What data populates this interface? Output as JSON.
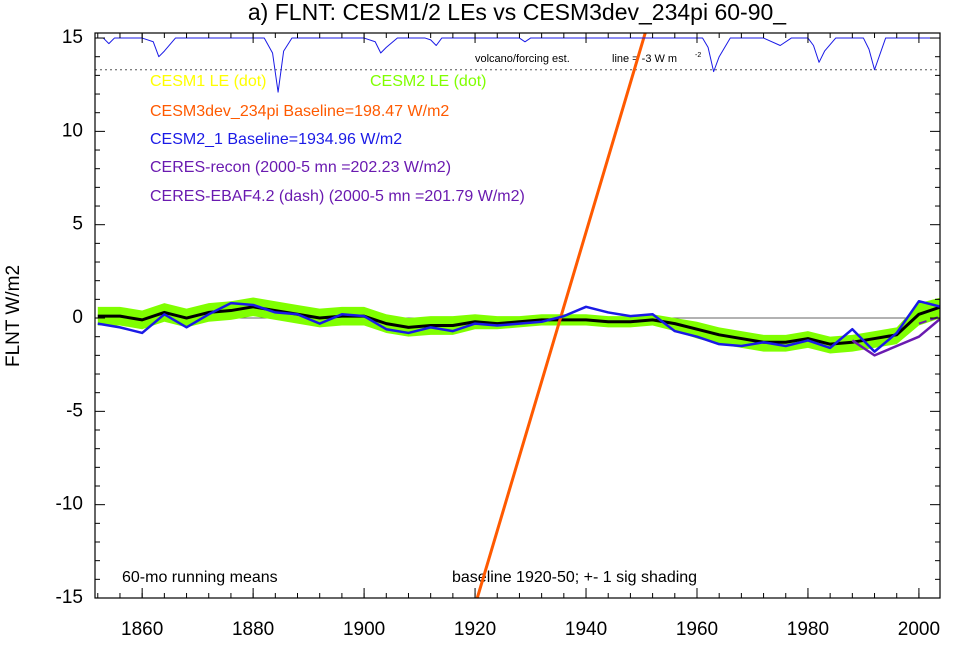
{
  "chart_data": {
    "type": "line",
    "title": "a) FLNT: CESM1/2 LEs vs CESM3dev_234pi 60-90_",
    "y_label": "FLNT W/m2",
    "annotations": [
      "60-mo running means",
      "baseline 1920-50; +- 1 sig shading",
      "volcano/forcing est.",
      "line = -3 W m",
      "-2"
    ],
    "xlim": [
      1851.5,
      2003.8
    ],
    "ylim": [
      -15,
      15.27
    ],
    "xticks": [
      1860,
      1880,
      1900,
      1920,
      1940,
      1960,
      1980,
      2000
    ],
    "yticks": [
      -15,
      -10,
      -5,
      0,
      5,
      10,
      15
    ],
    "reference_lines": [
      0,
      13.3
    ],
    "x": [
      1852,
      1856,
      1860,
      1864,
      1868,
      1872,
      1876,
      1880,
      1884,
      1888,
      1892,
      1896,
      1900,
      1904,
      1908,
      1912,
      1916,
      1920,
      1924,
      1928,
      1932,
      1936,
      1940,
      1944,
      1948,
      1952,
      1956,
      1960,
      1964,
      1968,
      1972,
      1976,
      1980,
      1984,
      1988,
      1992,
      1996,
      2000,
      2004
    ],
    "series": [
      {
        "name": "CESM1 LE (dot)",
        "color": "#ffff00",
        "lower": [
          null,
          null,
          null,
          null,
          null,
          null,
          null,
          null,
          null,
          null,
          null,
          null,
          null,
          null,
          null,
          null,
          null,
          -0.4,
          -0.5,
          -0.4,
          -0.3,
          -0.3,
          -0.3,
          -0.4,
          -0.4,
          -0.3,
          -0.5,
          -0.8,
          -1.1,
          -1.3,
          -1.5,
          -1.5,
          -1.3,
          -1.6,
          -1.5,
          -1.3,
          -1.1,
          -0.3,
          0.1
        ],
        "upper": [
          null,
          null,
          null,
          null,
          null,
          null,
          null,
          null,
          null,
          null,
          null,
          null,
          null,
          null,
          null,
          null,
          null,
          0.0,
          -0.1,
          0.0,
          0.1,
          0.1,
          0.1,
          0.0,
          0.0,
          0.1,
          -0.1,
          -0.4,
          -0.7,
          -0.9,
          -1.1,
          -1.1,
          -0.9,
          -1.2,
          -1.1,
          -0.9,
          -0.7,
          0.4,
          0.8
        ]
      },
      {
        "name": "CESM2 LE (dot)",
        "color": "#80ff00",
        "lower": [
          -0.4,
          -0.4,
          -0.6,
          -0.2,
          -0.5,
          -0.2,
          -0.1,
          0.1,
          -0.1,
          -0.3,
          -0.5,
          -0.4,
          -0.4,
          -0.8,
          -1.0,
          -0.9,
          -0.9,
          -0.6,
          -0.6,
          -0.5,
          -0.4,
          -0.4,
          -0.4,
          -0.5,
          -0.5,
          -0.4,
          -0.7,
          -1.1,
          -1.4,
          -1.6,
          -1.8,
          -1.8,
          -1.6,
          -1.9,
          -1.8,
          -1.6,
          -1.4,
          -0.4,
          0.0
        ],
        "upper": [
          0.6,
          0.6,
          0.4,
          0.8,
          0.5,
          0.8,
          0.9,
          1.1,
          0.9,
          0.7,
          0.5,
          0.6,
          0.6,
          0.2,
          0.0,
          0.1,
          0.1,
          0.2,
          0.1,
          0.1,
          0.2,
          0.2,
          0.2,
          0.1,
          0.1,
          0.2,
          0.0,
          -0.2,
          -0.5,
          -0.7,
          -0.9,
          -0.9,
          -0.7,
          -1.0,
          -0.9,
          -0.7,
          -0.5,
          0.8,
          1.1
        ]
      },
      {
        "color": "#000000",
        "width": 3,
        "values": [
          0.1,
          0.1,
          -0.1,
          0.3,
          0.0,
          0.3,
          0.4,
          0.6,
          0.4,
          0.2,
          0.0,
          0.1,
          0.1,
          -0.3,
          -0.5,
          -0.4,
          -0.4,
          -0.2,
          -0.3,
          -0.2,
          -0.1,
          -0.1,
          -0.1,
          -0.2,
          -0.2,
          -0.1,
          -0.3,
          -0.6,
          -0.9,
          -1.1,
          -1.3,
          -1.3,
          -1.1,
          -1.4,
          -1.3,
          -1.1,
          -0.9,
          0.2,
          0.6
        ]
      },
      {
        "name": "CESM3dev_234pi Baseline=198.47 W/m2",
        "color": "#ff5a00",
        "width": 3,
        "x": [
          1920,
          1951
        ],
        "values": [
          -15.4,
          15.6
        ]
      },
      {
        "name": "CESM2_1 Baseline=1934.96 W/m2",
        "color": "#1a1ae6",
        "width": 2.5,
        "values": [
          -0.3,
          -0.5,
          -0.8,
          0.2,
          -0.5,
          0.2,
          0.8,
          0.7,
          0.3,
          0.2,
          -0.3,
          0.2,
          0.1,
          -0.6,
          -0.8,
          -0.5,
          -0.7,
          -0.3,
          -0.4,
          -0.3,
          -0.2,
          0.1,
          0.6,
          0.3,
          0.1,
          0.2,
          -0.7,
          -1.0,
          -1.4,
          -1.5,
          -1.3,
          -1.5,
          -1.2,
          -1.6,
          -0.6,
          -1.8,
          -0.8,
          0.9,
          0.6
        ]
      },
      {
        "name": "CERES-recon (2000-5 mn =202.23 W/m2)",
        "color": "#6a1ab0",
        "width": 2.5,
        "values": [
          null,
          null,
          null,
          null,
          null,
          null,
          null,
          null,
          null,
          null,
          null,
          null,
          null,
          null,
          null,
          null,
          null,
          null,
          null,
          null,
          null,
          null,
          null,
          null,
          null,
          null,
          null,
          null,
          null,
          null,
          null,
          null,
          null,
          null,
          -1.2,
          -2.0,
          -1.5,
          -1.0,
          0.0
        ]
      },
      {
        "name": "CERES-EBAF4.2 (dash) (2000-5 mn =201.79 W/m2)",
        "color": "#6a1ab0",
        "width": 2,
        "dash": true,
        "values": [
          null,
          null,
          null,
          null,
          null,
          null,
          null,
          null,
          null,
          null,
          null,
          null,
          null,
          null,
          null,
          null,
          null,
          null,
          null,
          null,
          null,
          null,
          null,
          null,
          null,
          null,
          null,
          null,
          null,
          null,
          null,
          null,
          null,
          null,
          null,
          null,
          null,
          -0.3,
          0.1
        ]
      },
      {
        "color": "#1a1ae6",
        "width": 1,
        "x": [
          1851.5,
          1853,
          1854,
          1855,
          1857,
          1858,
          1860,
          1862,
          1863,
          1864,
          1866,
          1868,
          1875,
          1882,
          1883.5,
          1884.5,
          1885.5,
          1887,
          1890,
          1900,
          1902,
          1903,
          1904,
          1906,
          1911,
          1912,
          1913,
          1914,
          1920,
          1928,
          1929,
          1930,
          1935,
          1955,
          1961,
          1962,
          1963,
          1964,
          1966,
          1972,
          1975,
          1977,
          1980,
          1981,
          1982,
          1983,
          1985,
          1990,
          1991,
          1992,
          1994,
          2003.8
        ],
        "values": [
          15,
          15,
          14.7,
          15,
          15,
          15,
          15,
          14.8,
          14.0,
          14.3,
          15,
          15,
          15,
          15,
          14.2,
          12.1,
          14.3,
          15,
          15,
          15,
          14.8,
          14.2,
          14.5,
          15,
          15,
          14.9,
          14.6,
          15,
          15,
          15,
          14.8,
          15,
          15,
          15,
          15,
          14.5,
          13.2,
          14.0,
          15,
          15,
          14.6,
          15,
          15,
          14.6,
          13.7,
          14.3,
          15,
          15,
          14.4,
          13.3,
          15,
          15
        ]
      }
    ],
    "grid": false
  }
}
